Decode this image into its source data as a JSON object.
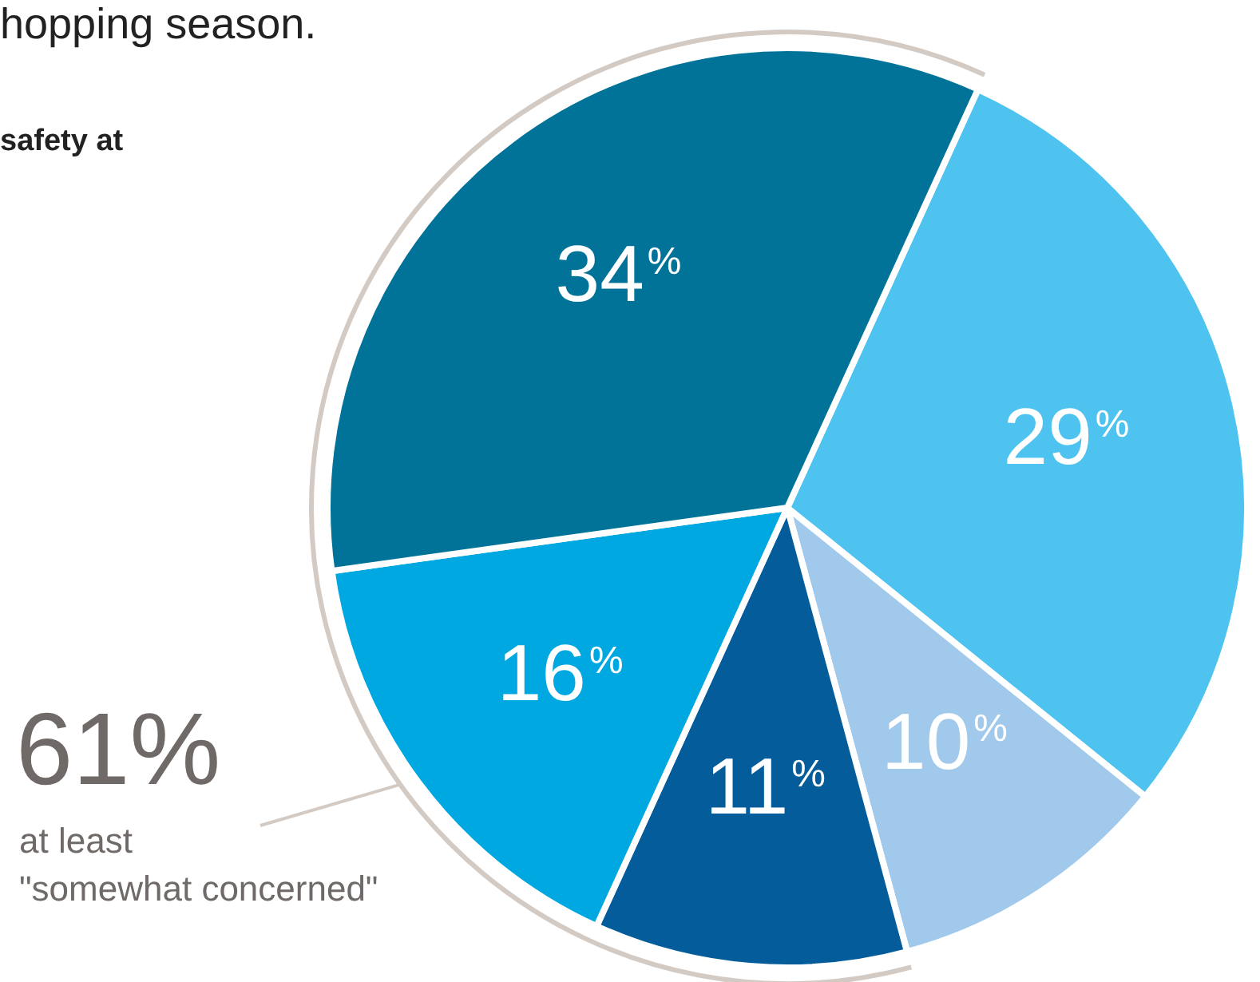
{
  "chart_data": {
    "type": "pie",
    "title": "hopping season.",
    "subtitle": "safety at",
    "categories": [
      null,
      null,
      null,
      null,
      null
    ],
    "values": [
      29,
      10,
      11,
      16,
      34
    ],
    "colors": [
      "#4fc3f0",
      "#a1c9ec",
      "#045d9a",
      "#00a8e1",
      "#017398"
    ],
    "value_labels": [
      "29$^{%}$",
      "10$^{%}$",
      "11$^{%}$",
      "16$^{%}$",
      "34$^{%}$"
    ],
    "legend": false,
    "annotations": [
      "61%",
      "at least\n\"somewhat concerned\""
    ]
  }
}
